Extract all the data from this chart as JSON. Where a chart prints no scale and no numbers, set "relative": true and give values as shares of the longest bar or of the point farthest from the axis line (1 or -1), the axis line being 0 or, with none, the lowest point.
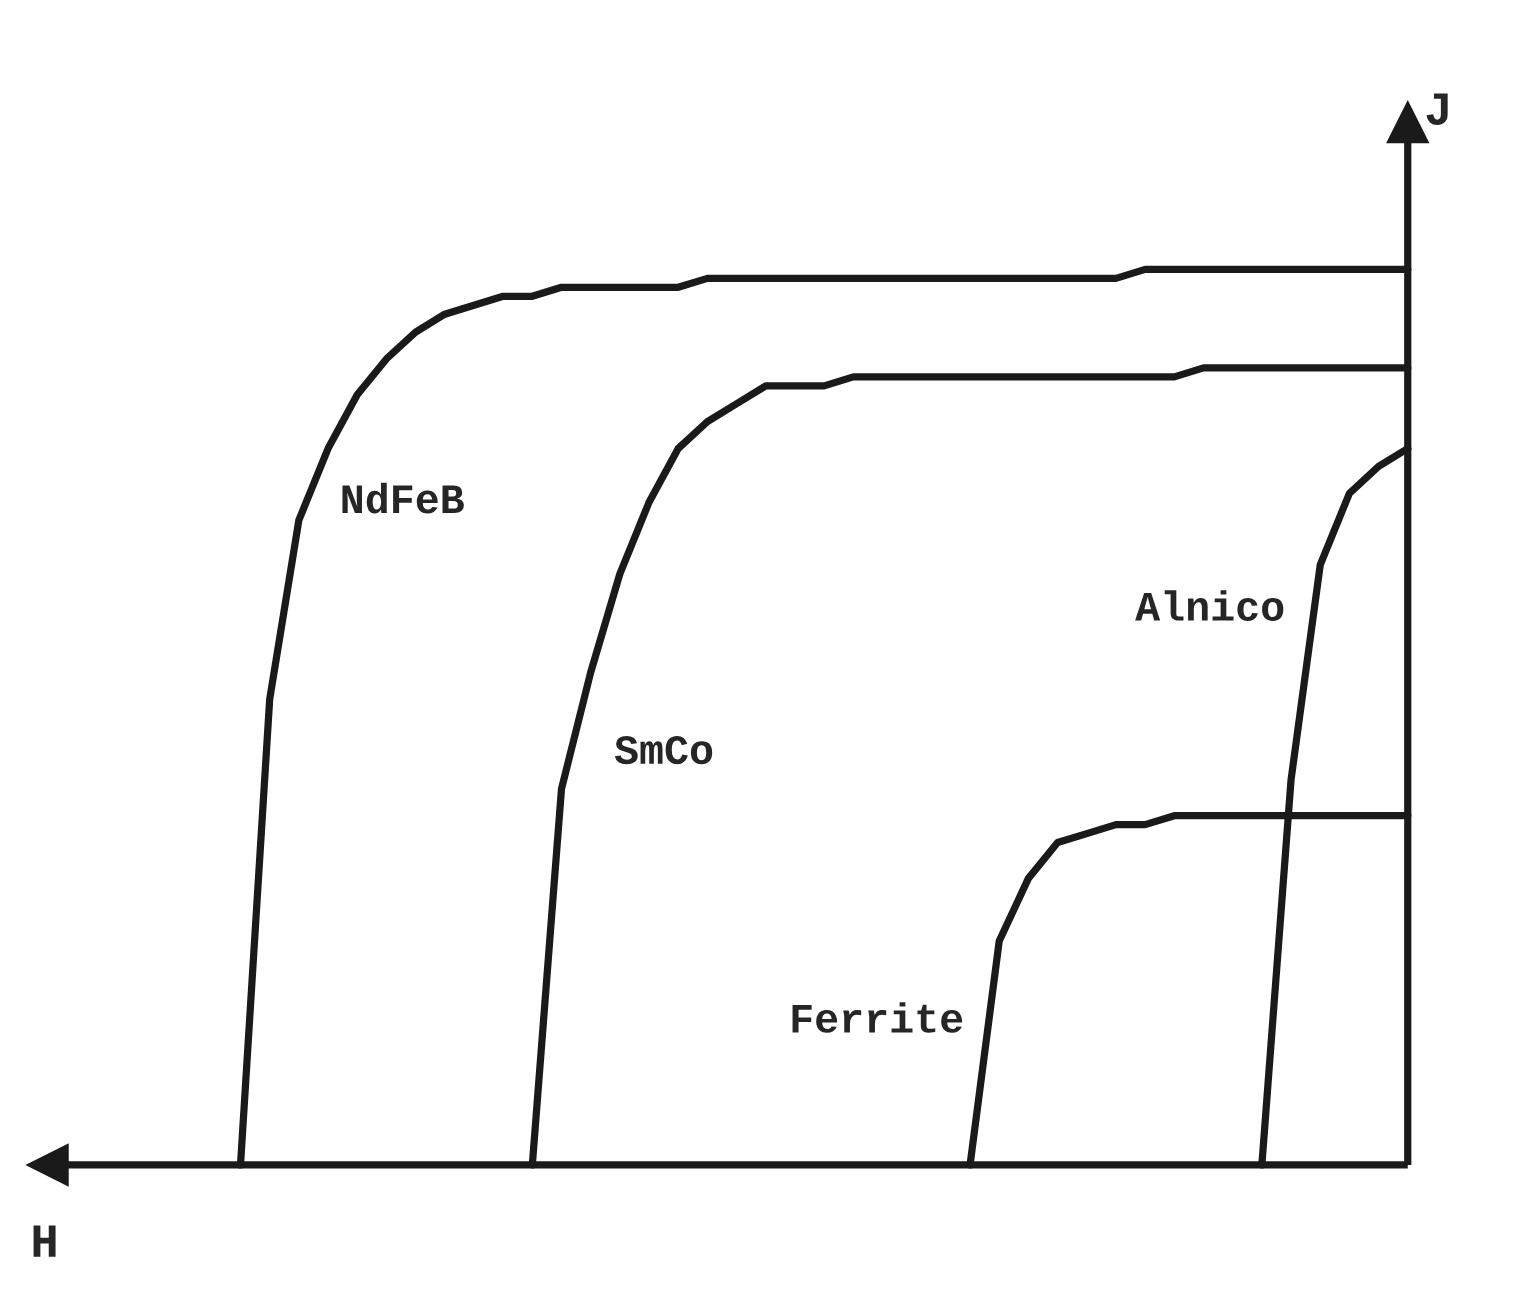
{
  "chart_data": {
    "type": "line",
    "relative": true,
    "xlabel": "H",
    "ylabel": "J",
    "legend": false,
    "marker": "none",
    "line_style": "solid",
    "categories": [
      null,
      null,
      null,
      null,
      null,
      null,
      null,
      null,
      null,
      null,
      null,
      null,
      null,
      null,
      null,
      null,
      null,
      null,
      null,
      null,
      null,
      null,
      null,
      null,
      null,
      null,
      null,
      null,
      null,
      null,
      null,
      null,
      null,
      null,
      null,
      null,
      null,
      null,
      null,
      null,
      null
    ],
    "series": [
      {
        "name": "NdFeB",
        "color": "#1a1a1a",
        "values": [
          0,
          0.52,
          0.72,
          0.8,
          0.86,
          0.9,
          0.93,
          0.95,
          0.96,
          0.97,
          0.97,
          0.98,
          0.98,
          0.98,
          0.98,
          0.98,
          0.99,
          0.99,
          0.99,
          0.99,
          0.99,
          0.99,
          0.99,
          0.99,
          0.99,
          0.99,
          0.99,
          0.99,
          0.99,
          0.99,
          0.99,
          1.0,
          1.0,
          1.0,
          1.0,
          1.0,
          1.0,
          1.0,
          1.0,
          1.0,
          1.0
        ]
      },
      {
        "name": "SmCo",
        "color": "#1a1a1a",
        "values": [
          null,
          null,
          null,
          null,
          null,
          null,
          null,
          null,
          null,
          null,
          0,
          0.42,
          0.55,
          0.66,
          0.74,
          0.8,
          0.83,
          0.85,
          0.87,
          0.87,
          0.87,
          0.88,
          0.88,
          0.88,
          0.88,
          0.88,
          0.88,
          0.88,
          0.88,
          0.88,
          0.88,
          0.88,
          0.88,
          0.89,
          0.89,
          0.89,
          0.89,
          0.89,
          0.89,
          0.89,
          0.89
        ]
      },
      {
        "name": "Alnico",
        "color": "#1a1a1a",
        "values": [
          null,
          null,
          null,
          null,
          null,
          null,
          null,
          null,
          null,
          null,
          null,
          null,
          null,
          null,
          null,
          null,
          null,
          null,
          null,
          null,
          null,
          null,
          null,
          null,
          null,
          null,
          null,
          null,
          null,
          null,
          null,
          null,
          null,
          null,
          null,
          0,
          0.43,
          0.67,
          0.75,
          0.78,
          0.8
        ]
      },
      {
        "name": "Ferrite",
        "color": "#1a1a1a",
        "values": [
          null,
          null,
          null,
          null,
          null,
          null,
          null,
          null,
          null,
          null,
          null,
          null,
          null,
          null,
          null,
          null,
          null,
          null,
          null,
          null,
          null,
          null,
          null,
          null,
          null,
          0,
          0.25,
          0.32,
          0.36,
          0.37,
          0.38,
          0.38,
          0.39,
          0.39,
          0.39,
          0.39,
          0.39,
          0.39,
          0.39,
          0.39,
          0.39
        ]
      }
    ]
  }
}
